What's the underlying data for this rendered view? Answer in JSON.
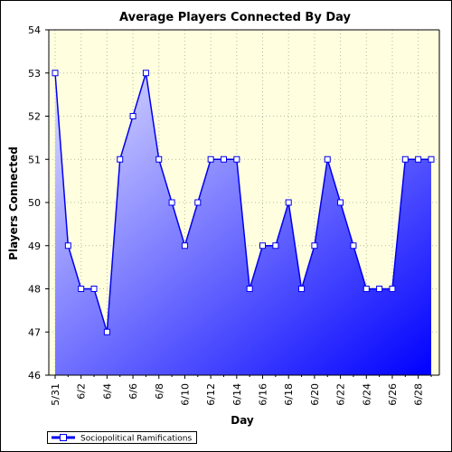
{
  "chart_data": {
    "type": "area",
    "title": "Average Players Connected By Day",
    "xlabel": "Day",
    "ylabel": "Players Connected",
    "ylim": [
      46,
      54
    ],
    "yticks": [
      46,
      47,
      48,
      49,
      50,
      51,
      52,
      53,
      54
    ],
    "grid": true,
    "legend_position": "bottom-left",
    "categories": [
      "5/31",
      "6/1",
      "6/2",
      "6/3",
      "6/4",
      "6/5",
      "6/6",
      "6/7",
      "6/8",
      "6/9",
      "6/10",
      "6/11",
      "6/12",
      "6/13",
      "6/14",
      "6/15",
      "6/16",
      "6/17",
      "6/18",
      "6/19",
      "6/20",
      "6/21",
      "6/22",
      "6/23",
      "6/24",
      "6/25",
      "6/26",
      "6/27",
      "6/28",
      "6/29"
    ],
    "x_tick_labels": [
      "5/31",
      "6/2",
      "6/4",
      "6/6",
      "6/8",
      "6/10",
      "6/12",
      "6/14",
      "6/16",
      "6/18",
      "6/20",
      "6/22",
      "6/24",
      "6/26",
      "6/28"
    ],
    "series": [
      {
        "name": "Sociopolitical Ramifications",
        "values": [
          53,
          49,
          48,
          48,
          47,
          51,
          52,
          53,
          51,
          50,
          49,
          50,
          51,
          51,
          51,
          48,
          49,
          49,
          50,
          48,
          49,
          51,
          50,
          49,
          48,
          48,
          48,
          51,
          51,
          51
        ]
      }
    ],
    "colors": {
      "line": "#0000ee",
      "plot_background": "#ffffe0",
      "grid": "#b8b8a0",
      "fill_light": "#e0e0ff",
      "fill_dark": "#0000ff"
    }
  }
}
